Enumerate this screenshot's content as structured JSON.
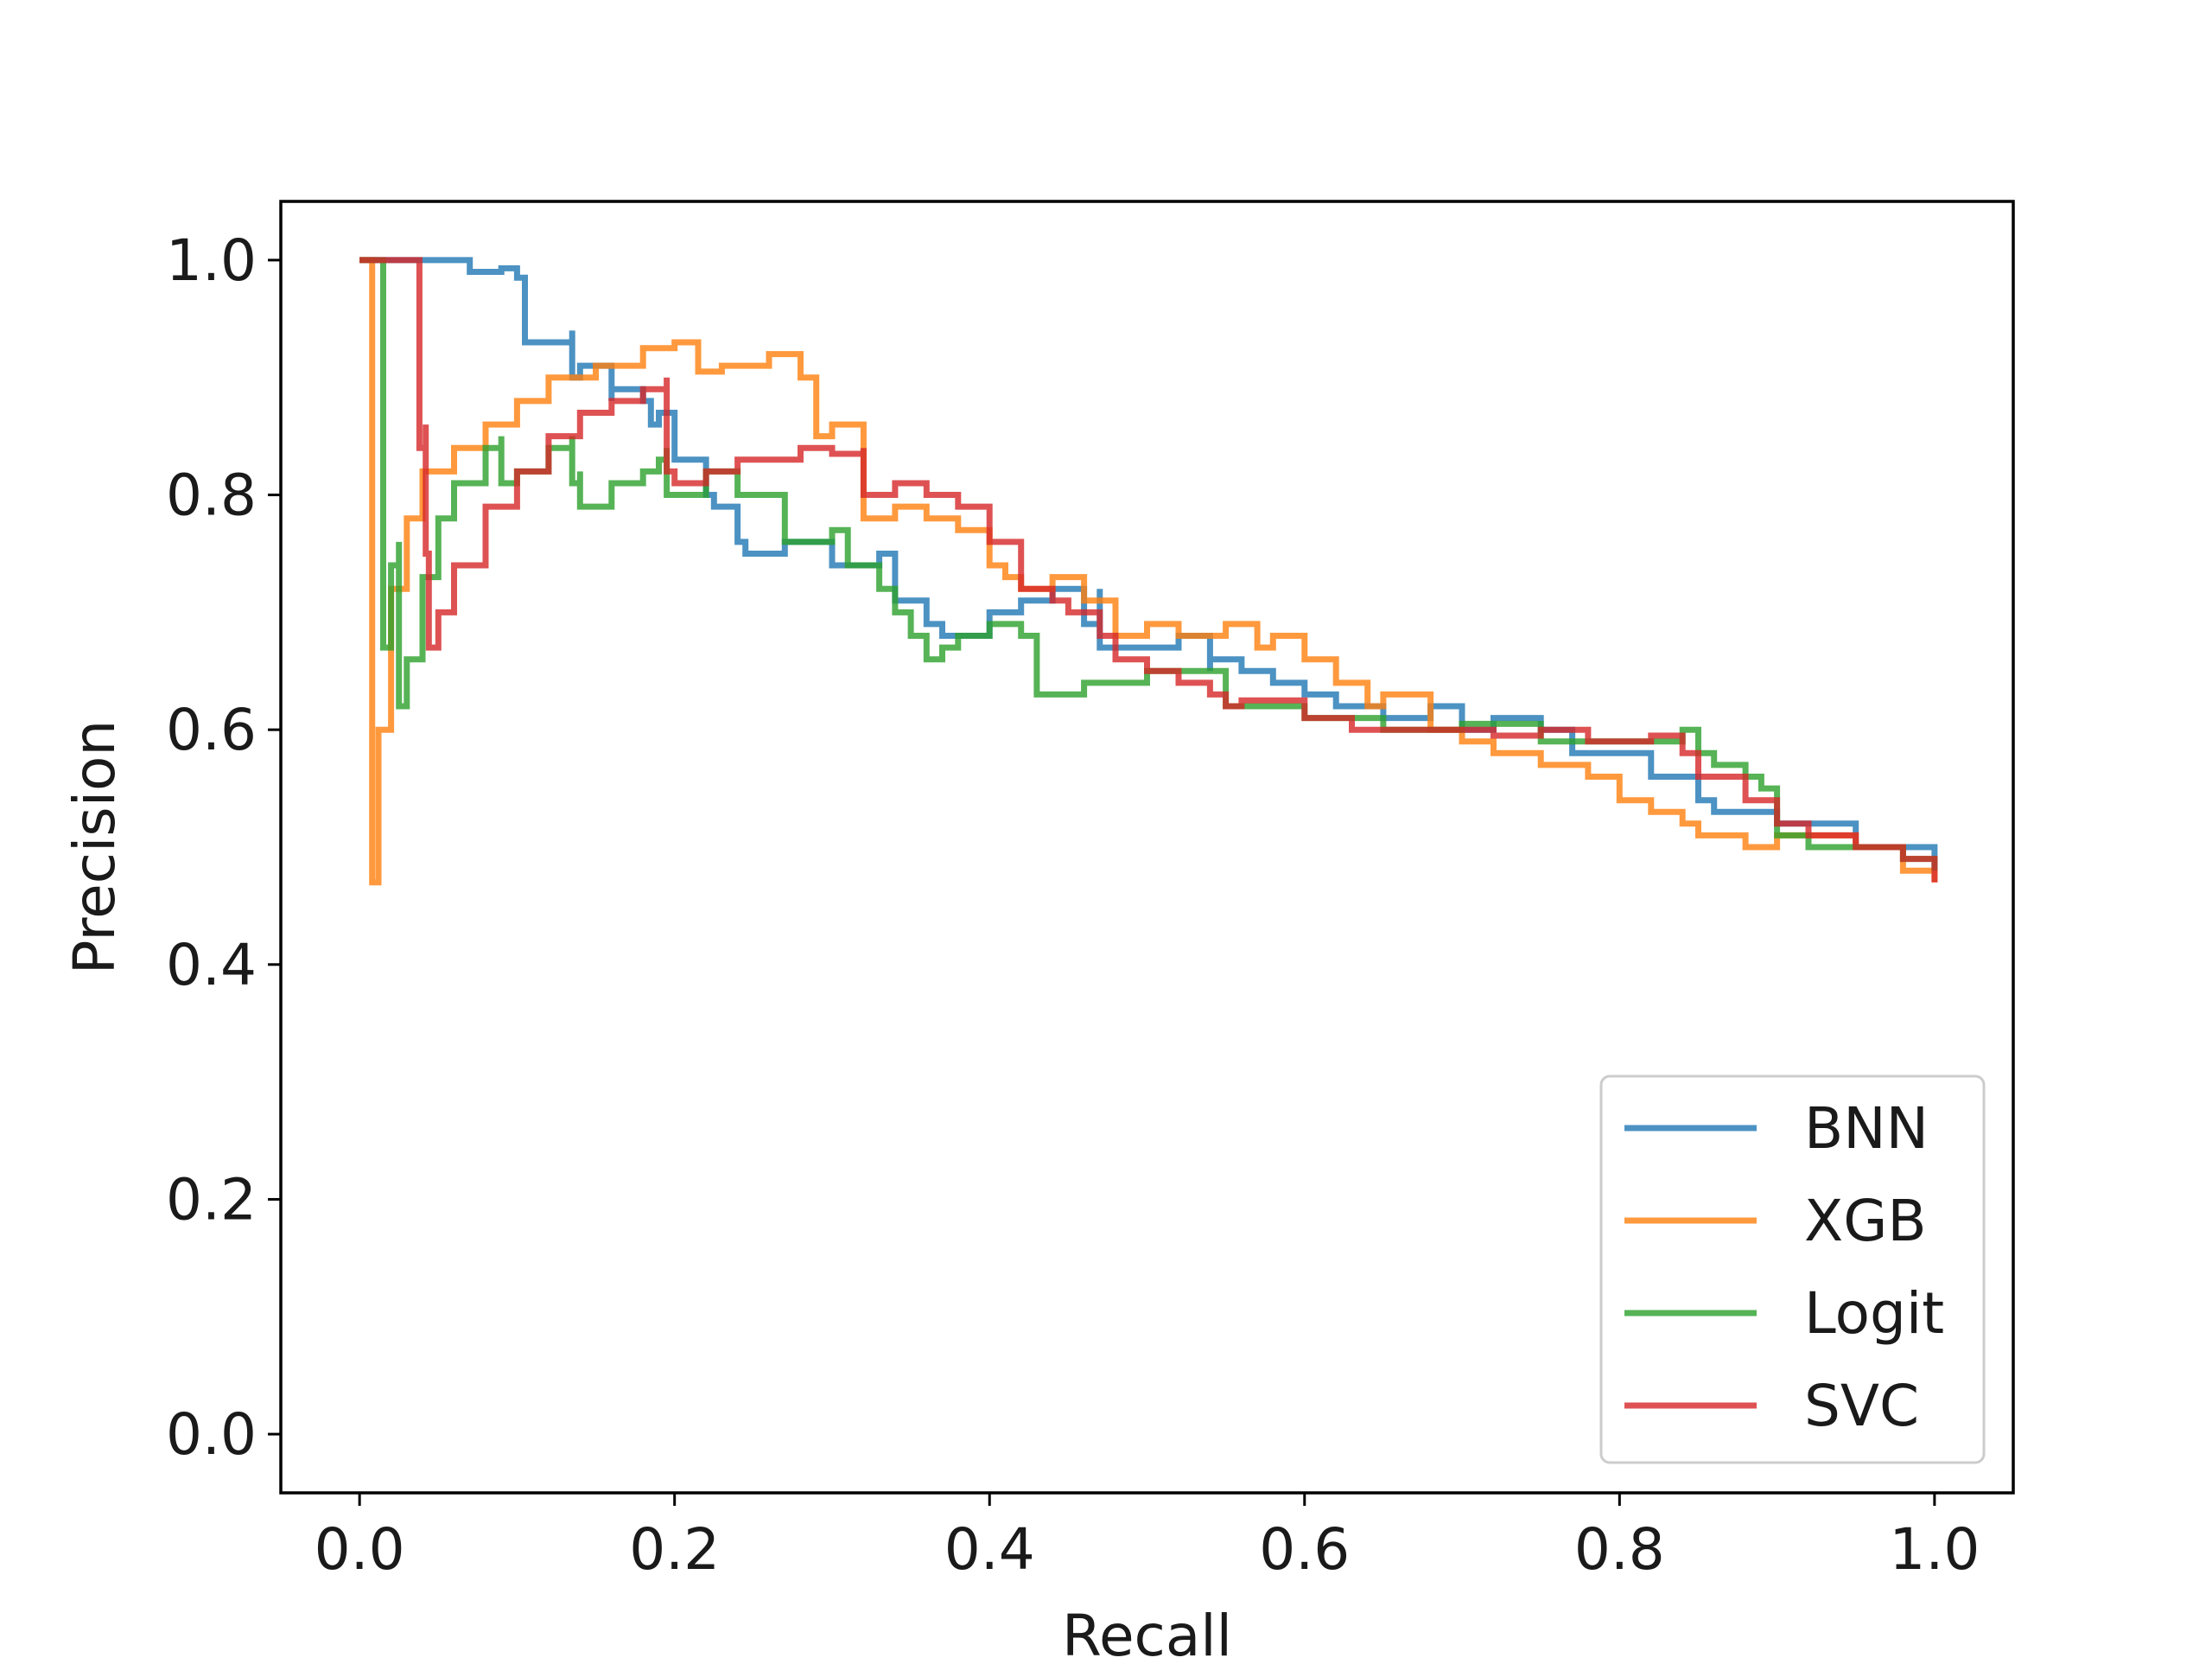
{
  "chart_data": {
    "type": "line",
    "title": "",
    "xlabel": "Recall",
    "ylabel": "Precision",
    "xlim": [
      -0.05,
      1.05
    ],
    "ylim": [
      -0.05,
      1.05
    ],
    "xticks": [
      0.0,
      0.2,
      0.4,
      0.6,
      0.8,
      1.0
    ],
    "xtick_labels": [
      "0.0",
      "0.2",
      "0.4",
      "0.6",
      "0.8",
      "1.0"
    ],
    "yticks": [
      0.0,
      0.2,
      0.4,
      0.6,
      0.8,
      1.0
    ],
    "ytick_labels": [
      "0.0",
      "0.2",
      "0.4",
      "0.6",
      "0.8",
      "1.0"
    ],
    "grid": false,
    "legend_position": "lower-right",
    "series": [
      {
        "name": "BNN",
        "color": "#1f77b4",
        "x": [
          0.0,
          0.065,
          0.07,
          0.09,
          0.1,
          0.105,
          0.105,
          0.135,
          0.135,
          0.14,
          0.16,
          0.16,
          0.18,
          0.185,
          0.185,
          0.19,
          0.2,
          0.2,
          0.22,
          0.225,
          0.24,
          0.245,
          0.27,
          0.3,
          0.33,
          0.34,
          0.34,
          0.36,
          0.37,
          0.4,
          0.42,
          0.44,
          0.46,
          0.47,
          0.47,
          0.5,
          0.52,
          0.54,
          0.54,
          0.56,
          0.58,
          0.6,
          0.62,
          0.65,
          0.68,
          0.7,
          0.72,
          0.75,
          0.77,
          0.8,
          0.82,
          0.85,
          0.86,
          0.9,
          0.95,
          1.0
        ],
        "y": [
          1.0,
          1.0,
          0.99,
          0.993,
          0.985,
          0.985,
          0.93,
          0.94,
          0.9,
          0.91,
          0.88,
          0.89,
          0.88,
          0.87,
          0.86,
          0.87,
          0.87,
          0.83,
          0.8,
          0.79,
          0.76,
          0.75,
          0.76,
          0.74,
          0.75,
          0.73,
          0.71,
          0.69,
          0.68,
          0.7,
          0.71,
          0.72,
          0.69,
          0.72,
          0.67,
          0.67,
          0.68,
          0.65,
          0.66,
          0.65,
          0.64,
          0.63,
          0.62,
          0.61,
          0.62,
          0.6,
          0.61,
          0.6,
          0.58,
          0.58,
          0.56,
          0.54,
          0.53,
          0.52,
          0.5,
          0.48
        ]
      },
      {
        "name": "XGB",
        "color": "#ff7f0e",
        "x": [
          0.0,
          0.008,
          0.008,
          0.012,
          0.02,
          0.03,
          0.04,
          0.06,
          0.08,
          0.1,
          0.12,
          0.15,
          0.18,
          0.2,
          0.21,
          0.215,
          0.215,
          0.23,
          0.26,
          0.28,
          0.29,
          0.29,
          0.3,
          0.32,
          0.32,
          0.34,
          0.36,
          0.38,
          0.4,
          0.41,
          0.42,
          0.44,
          0.46,
          0.48,
          0.5,
          0.52,
          0.55,
          0.57,
          0.58,
          0.6,
          0.62,
          0.64,
          0.65,
          0.68,
          0.7,
          0.72,
          0.75,
          0.78,
          0.8,
          0.82,
          0.84,
          0.85,
          0.88,
          0.9,
          0.95,
          0.98,
          1.0
        ],
        "y": [
          1.0,
          1.0,
          0.47,
          0.6,
          0.72,
          0.78,
          0.82,
          0.84,
          0.86,
          0.88,
          0.9,
          0.91,
          0.925,
          0.93,
          0.93,
          0.93,
          0.905,
          0.91,
          0.92,
          0.9,
          0.87,
          0.85,
          0.86,
          0.85,
          0.78,
          0.79,
          0.78,
          0.77,
          0.74,
          0.73,
          0.72,
          0.73,
          0.71,
          0.68,
          0.69,
          0.68,
          0.69,
          0.67,
          0.68,
          0.66,
          0.64,
          0.62,
          0.63,
          0.6,
          0.59,
          0.58,
          0.57,
          0.56,
          0.54,
          0.53,
          0.52,
          0.51,
          0.5,
          0.51,
          0.5,
          0.48,
          0.47
        ]
      },
      {
        "name": "Logit",
        "color": "#2ca02c",
        "x": [
          0.0,
          0.015,
          0.015,
          0.02,
          0.025,
          0.025,
          0.03,
          0.04,
          0.05,
          0.06,
          0.08,
          0.09,
          0.09,
          0.1,
          0.12,
          0.135,
          0.135,
          0.14,
          0.14,
          0.16,
          0.18,
          0.19,
          0.195,
          0.195,
          0.22,
          0.24,
          0.27,
          0.27,
          0.3,
          0.31,
          0.33,
          0.34,
          0.35,
          0.36,
          0.37,
          0.38,
          0.4,
          0.42,
          0.43,
          0.43,
          0.46,
          0.5,
          0.55,
          0.6,
          0.65,
          0.7,
          0.75,
          0.8,
          0.84,
          0.85,
          0.86,
          0.88,
          0.89,
          0.9,
          0.92,
          0.95,
          0.98,
          1.0
        ],
        "y": [
          1.0,
          1.0,
          0.67,
          0.74,
          0.76,
          0.62,
          0.66,
          0.73,
          0.78,
          0.81,
          0.84,
          0.85,
          0.81,
          0.82,
          0.84,
          0.85,
          0.81,
          0.82,
          0.79,
          0.81,
          0.82,
          0.83,
          0.84,
          0.8,
          0.82,
          0.8,
          0.78,
          0.76,
          0.77,
          0.74,
          0.72,
          0.7,
          0.68,
          0.66,
          0.67,
          0.68,
          0.69,
          0.68,
          0.66,
          0.63,
          0.64,
          0.65,
          0.62,
          0.61,
          0.6,
          0.605,
          0.59,
          0.59,
          0.6,
          0.58,
          0.57,
          0.56,
          0.55,
          0.51,
          0.5,
          0.5,
          0.49,
          0.48
        ]
      },
      {
        "name": "SVC",
        "color": "#d62728",
        "x": [
          0.0,
          0.038,
          0.038,
          0.042,
          0.042,
          0.044,
          0.044,
          0.05,
          0.06,
          0.08,
          0.1,
          0.12,
          0.14,
          0.16,
          0.18,
          0.195,
          0.195,
          0.2,
          0.22,
          0.24,
          0.26,
          0.28,
          0.3,
          0.32,
          0.32,
          0.34,
          0.36,
          0.38,
          0.4,
          0.42,
          0.44,
          0.45,
          0.47,
          0.48,
          0.5,
          0.52,
          0.54,
          0.55,
          0.56,
          0.6,
          0.63,
          0.67,
          0.7,
          0.72,
          0.75,
          0.78,
          0.82,
          0.84,
          0.85,
          0.88,
          0.9,
          0.92,
          0.95,
          0.98,
          1.0
        ],
        "y": [
          1.0,
          1.0,
          0.84,
          0.86,
          0.75,
          0.72,
          0.67,
          0.7,
          0.74,
          0.79,
          0.82,
          0.85,
          0.87,
          0.88,
          0.89,
          0.9,
          0.82,
          0.81,
          0.82,
          0.83,
          0.83,
          0.84,
          0.835,
          0.84,
          0.8,
          0.81,
          0.8,
          0.79,
          0.76,
          0.72,
          0.71,
          0.7,
          0.68,
          0.66,
          0.65,
          0.64,
          0.63,
          0.62,
          0.625,
          0.61,
          0.6,
          0.6,
          0.6,
          0.595,
          0.6,
          0.59,
          0.595,
          0.58,
          0.56,
          0.54,
          0.52,
          0.51,
          0.5,
          0.49,
          0.47
        ]
      }
    ]
  }
}
